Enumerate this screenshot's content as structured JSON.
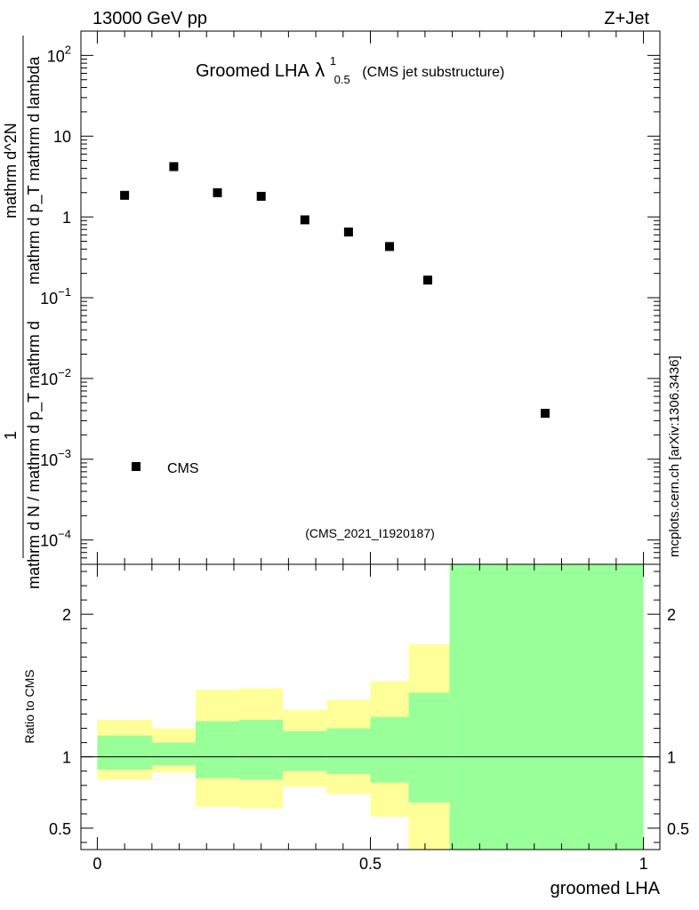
{
  "header": {
    "energy": "13000 GeV pp",
    "process": "Z+Jet",
    "side_label": "mcplots.cern.ch [arXiv:1306.3436]"
  },
  "chart_data": {
    "type": "scatter",
    "title": "Groomed LHA",
    "title_symbol": "λ",
    "title_sup": "1",
    "title_sub": "0.5",
    "title_note": "(CMS jet substructure)",
    "analysis_id": "(CMS_2021_I1920187)",
    "ylabel": {
      "fraction_numerator": "1",
      "fraction_denominator": "mathrm d N / mathrm d p_T mathrm d",
      "top_numerator": "mathrm d^2N",
      "top_denominator": "mathrm d p_T mathrm d lambda",
      "full_text": "1 / (mathrm d N / mathrm d p_T mathrm d) · mathrm d^2N / (mathrm d p_T mathrm d lambda)"
    },
    "xlabel": "groomed LHA",
    "x_range": [
      -0.03,
      1.03
    ],
    "y_scale": "log",
    "y_range": [
      5e-05,
      200
    ],
    "y_ticks": [
      {
        "value": 100,
        "label": "10",
        "sup": "2"
      },
      {
        "value": 10,
        "label": "10",
        "sup": ""
      },
      {
        "value": 1,
        "label": "1",
        "sup": ""
      },
      {
        "value": 0.1,
        "label": "10",
        "sup": "−1"
      },
      {
        "value": 0.01,
        "label": "10",
        "sup": "−2"
      },
      {
        "value": 0.001,
        "label": "10",
        "sup": "−3"
      },
      {
        "value": 0.0001,
        "label": "10",
        "sup": "−4"
      }
    ],
    "legend": [
      {
        "name": "CMS",
        "marker": "square",
        "position": "bottom-left"
      }
    ],
    "series": [
      {
        "name": "CMS",
        "x": [
          0.05,
          0.14,
          0.22,
          0.3,
          0.38,
          0.46,
          0.535,
          0.605,
          0.82
        ],
        "y": [
          1.85,
          4.2,
          2.0,
          1.8,
          0.92,
          0.65,
          0.43,
          0.165,
          0.0037
        ]
      }
    ],
    "ratio": {
      "ylabel": "Ratio to CMS",
      "y_range": [
        0.35,
        2.35
      ],
      "y_ticks": [
        {
          "value": 2,
          "label": "2"
        },
        {
          "value": 1,
          "label": "1"
        },
        {
          "value": 0.5,
          "label": "0.5"
        }
      ],
      "x_ticks": [
        {
          "value": 0,
          "label": "0"
        },
        {
          "value": 0.5,
          "label": "0.5"
        },
        {
          "value": 1,
          "label": "1"
        }
      ],
      "bands": [
        {
          "x0": 0.0,
          "x1": 0.1,
          "yellow": [
            0.84,
            1.26
          ],
          "green": [
            0.91,
            1.15
          ]
        },
        {
          "x0": 0.1,
          "x1": 0.18,
          "yellow": [
            0.89,
            1.2
          ],
          "green": [
            0.94,
            1.1
          ]
        },
        {
          "x0": 0.18,
          "x1": 0.26,
          "yellow": [
            0.65,
            1.47
          ],
          "green": [
            0.85,
            1.25
          ]
        },
        {
          "x0": 0.26,
          "x1": 0.34,
          "yellow": [
            0.64,
            1.48
          ],
          "green": [
            0.84,
            1.26
          ]
        },
        {
          "x0": 0.34,
          "x1": 0.42,
          "yellow": [
            0.79,
            1.33
          ],
          "green": [
            0.9,
            1.18
          ]
        },
        {
          "x0": 0.42,
          "x1": 0.5,
          "yellow": [
            0.74,
            1.4
          ],
          "green": [
            0.88,
            1.2
          ]
        },
        {
          "x0": 0.5,
          "x1": 0.57,
          "yellow": [
            0.58,
            1.53
          ],
          "green": [
            0.82,
            1.28
          ]
        },
        {
          "x0": 0.57,
          "x1": 0.645,
          "yellow": [
            0.35,
            1.79
          ],
          "green": [
            0.68,
            1.45
          ]
        },
        {
          "x0": 0.645,
          "x1": 1.0,
          "yellow": [
            0.35,
            2.35
          ],
          "green": [
            0.35,
            2.35
          ]
        }
      ],
      "colors": {
        "yellow": "#ffff99",
        "green": "#99ff99"
      }
    },
    "colors": {
      "marker": "#000000",
      "frame": "#000000",
      "muted_text": "#888888",
      "ratio_line": "#000000"
    }
  }
}
